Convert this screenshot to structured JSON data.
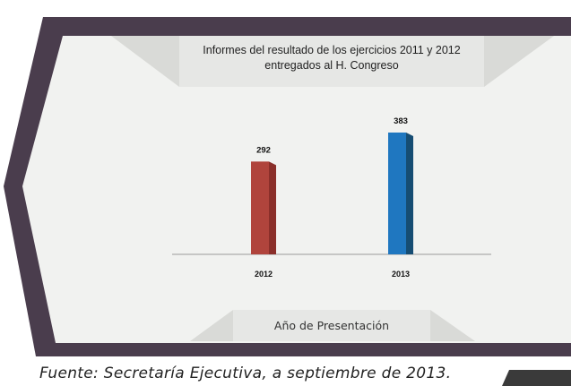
{
  "chart_data": {
    "type": "bar",
    "title": "Informes del resultado de los ejercicios 2011 y 2012 entregados al H. Congreso",
    "xlabel": "Año de Presentación",
    "ylabel": "",
    "categories": [
      "2012",
      "2013"
    ],
    "values": [
      292,
      383
    ],
    "ylim": [
      0,
      383
    ],
    "data_labels": true,
    "grid": false,
    "bar_colors": [
      "#b0443c",
      "#1f77c0"
    ],
    "bar_side_colors": [
      "#8a2f2a",
      "#164d73"
    ]
  },
  "source_note": "Fuente: Secretaría Ejecutiva, a septiembre de 2013.",
  "colors": {
    "frame": "#4a3d4d",
    "panel": "#f1f2f0",
    "banner": "#e6e7e5",
    "banner_wing": "#d9dad7"
  }
}
